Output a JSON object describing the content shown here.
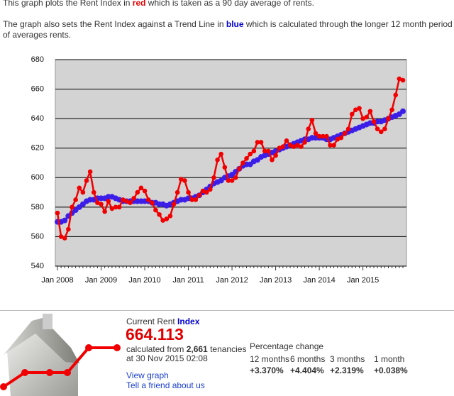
{
  "intro": {
    "line1": [
      "This graph plots the Rent Index in ",
      "red",
      " which is taken as a 90 day average of rents."
    ],
    "line2": [
      "The graph also sets the Rent Index against a Trend Line in ",
      "blue",
      " which is calculated through the longer 12 month period of averages rents."
    ]
  },
  "chart_data": {
    "type": "line",
    "categories": [
      "Jan 2008",
      null,
      null,
      null,
      null,
      null,
      null,
      null,
      null,
      null,
      null,
      null,
      "Jan 2009",
      null,
      null,
      null,
      null,
      null,
      null,
      null,
      null,
      null,
      null,
      null,
      "Jan 2010",
      null,
      null,
      null,
      null,
      null,
      null,
      null,
      null,
      null,
      null,
      null,
      "Jan 2011",
      null,
      null,
      null,
      null,
      null,
      null,
      null,
      null,
      null,
      null,
      null,
      "Jan 2012",
      null,
      null,
      null,
      null,
      null,
      null,
      null,
      null,
      null,
      null,
      null,
      "Jan 2013",
      null,
      null,
      null,
      null,
      null,
      null,
      null,
      null,
      null,
      null,
      null,
      "Jan 2014",
      null,
      null,
      null,
      null,
      null,
      null,
      null,
      null,
      null,
      null,
      null,
      "Jan 2015",
      null,
      null,
      null,
      null,
      null,
      null,
      null,
      null,
      null,
      null,
      null
    ],
    "series": [
      {
        "color": "#3b1ee8",
        "values": [
          570,
          570,
          571,
          574,
          576,
          578,
          580,
          582,
          584,
          585,
          585,
          586,
          586,
          586,
          587,
          587,
          586,
          585,
          584,
          584,
          584,
          584,
          584,
          584,
          584,
          584,
          583,
          583,
          582,
          582,
          581,
          582,
          583,
          584,
          585,
          585,
          586,
          586,
          587,
          588,
          590,
          592,
          594,
          596,
          597,
          598,
          600,
          601,
          602,
          604,
          606,
          608,
          609,
          609,
          611,
          612,
          614,
          615,
          616,
          617,
          618,
          619,
          620,
          621,
          622,
          623,
          624,
          625,
          626,
          626,
          627,
          627,
          627,
          627,
          626,
          626,
          627,
          628,
          629,
          630,
          631,
          632,
          633,
          634,
          635,
          636,
          637,
          637,
          638,
          638,
          639,
          640,
          641,
          642,
          643,
          645
        ]
      },
      {
        "color": "#f00000",
        "values": [
          576,
          560,
          559,
          565,
          580,
          585,
          593,
          590,
          598,
          604,
          590,
          583,
          582,
          577,
          584,
          579,
          580,
          580,
          585,
          584,
          583,
          586,
          590,
          593,
          591,
          585,
          583,
          578,
          575,
          571,
          572,
          574,
          582,
          590,
          599,
          598,
          590,
          585,
          585,
          588,
          591,
          590,
          592,
          600,
          612,
          616,
          607,
          598,
          598,
          600,
          606,
          610,
          613,
          616,
          618,
          624,
          624,
          618,
          618,
          612,
          615,
          620,
          621,
          625,
          622,
          621,
          622,
          621,
          624,
          633,
          639,
          630,
          628,
          628,
          628,
          622,
          622,
          626,
          627,
          630,
          633,
          643,
          646,
          647,
          640,
          641,
          645,
          638,
          633,
          631,
          633,
          640,
          646,
          656,
          667,
          666
        ]
      }
    ],
    "ylim": [
      540,
      680
    ],
    "yticks": [
      540,
      560,
      580,
      600,
      620,
      640,
      660,
      680
    ],
    "grid": true,
    "background": "#d3d3d3",
    "markers": true
  },
  "index_panel": {
    "label": [
      "Current Rent ",
      "Index"
    ],
    "value": "664.113",
    "calc": [
      "calculated from ",
      "2,661",
      " tenancies"
    ],
    "timestamp": "at 30 Nov 2015 02:08",
    "links": [
      "View graph",
      "Tell a friend about us"
    ]
  },
  "percentage_change": {
    "title": "Percentage change",
    "periods": [
      "12 months",
      "6 months",
      "3 months",
      "1 month"
    ],
    "values": [
      "+3.370%",
      "+4.404%",
      "+2.319%",
      "+0.038%"
    ]
  }
}
